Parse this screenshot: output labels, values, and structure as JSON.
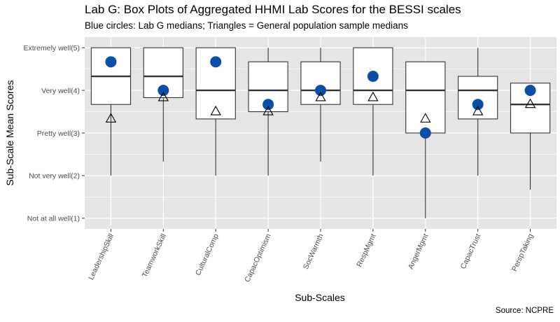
{
  "chart_data": {
    "type": "boxplot",
    "title": "Lab G: Box Plots of Aggregated HHMI Lab Scores for the BESSI scales",
    "subtitle": "Blue circles: Lab G medians; Triangles = General population sample medians",
    "xlabel": "Sub-Scales",
    "ylabel": "Sub-Scale Mean Scores",
    "caption": "Source: NCPRE",
    "ylim": [
      0.75,
      5.25
    ],
    "y_ticks": [
      {
        "value": 1,
        "label": "Not at all well(1)"
      },
      {
        "value": 2,
        "label": "Not very well(2)"
      },
      {
        "value": 3,
        "label": "Pretty well(3)"
      },
      {
        "value": 4,
        "label": "Very well(4)"
      },
      {
        "value": 5,
        "label": "Extremely well(5)"
      }
    ],
    "categories": [
      "LeadershipSkill",
      "TeamworkSkill",
      "CulturalComp",
      "CapacOptimism",
      "SocWarmth",
      "RespMgmt",
      "AngerMgmt",
      "CapacTrust",
      "PerspTaking"
    ],
    "boxes": [
      {
        "min": 2.0,
        "q1": 3.67,
        "median": 4.33,
        "q3": 5.0,
        "max": 5.0
      },
      {
        "min": 2.33,
        "q1": 3.83,
        "median": 4.33,
        "q3": 5.0,
        "max": 5.0
      },
      {
        "min": 2.0,
        "q1": 3.33,
        "median": 4.0,
        "q3": 5.0,
        "max": 5.0
      },
      {
        "min": 2.0,
        "q1": 3.5,
        "median": 4.0,
        "q3": 4.67,
        "max": 5.0
      },
      {
        "min": 2.33,
        "q1": 3.67,
        "median": 4.0,
        "q3": 4.67,
        "max": 5.0
      },
      {
        "min": 2.0,
        "q1": 3.67,
        "median": 4.0,
        "q3": 5.0,
        "max": 5.0
      },
      {
        "min": 1.0,
        "q1": 3.0,
        "median": 4.0,
        "q3": 4.67,
        "max": 4.67
      },
      {
        "min": 2.0,
        "q1": 3.33,
        "median": 4.0,
        "q3": 4.33,
        "max": 5.0
      },
      {
        "min": 1.67,
        "q1": 3.0,
        "median": 3.67,
        "q3": 4.17,
        "max": 4.17
      }
    ],
    "series": [
      {
        "marker": "circle",
        "values": [
          4.67,
          4.0,
          4.67,
          3.67,
          4.0,
          4.33,
          3.0,
          3.67,
          4.0
        ]
      },
      {
        "marker": "triangle",
        "values": [
          3.33,
          3.83,
          3.5,
          3.5,
          3.83,
          3.83,
          3.33,
          3.5,
          3.67
        ]
      }
    ],
    "colors": {
      "panel": "#e5e5e5",
      "grid": "#ffffff",
      "box_fill": "#ffffff",
      "box_line": "#333333",
      "circle": "#0b4ea8"
    },
    "grid": true
  }
}
